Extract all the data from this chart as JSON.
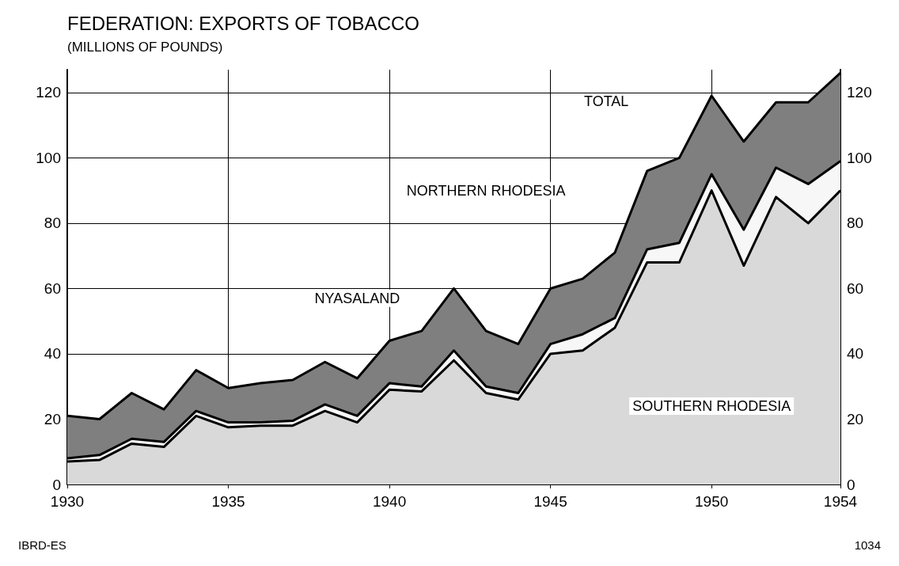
{
  "chart_data": {
    "type": "area",
    "title": "FEDERATION: EXPORTS OF TOBACCO",
    "subtitle": "(MILLIONS OF POUNDS)",
    "stacked": true,
    "grid": true,
    "x": [
      1930,
      1931,
      1932,
      1933,
      1934,
      1935,
      1936,
      1937,
      1938,
      1939,
      1940,
      1941,
      1942,
      1943,
      1944,
      1945,
      1946,
      1947,
      1948,
      1949,
      1950,
      1951,
      1952,
      1953,
      1954
    ],
    "series": [
      {
        "name": "SOUTHERN RHODESIA",
        "color": "#d9d9d9",
        "values": [
          7,
          7.5,
          12.5,
          11.5,
          21,
          17.5,
          18,
          18,
          22.5,
          19,
          29,
          28.5,
          38,
          28,
          26,
          40,
          41,
          48,
          68,
          68,
          90,
          67,
          88,
          80,
          90
        ]
      },
      {
        "name": "NORTHERN RHODESIA",
        "color": "#f7f7f7",
        "values": [
          1,
          1.5,
          1.5,
          1.5,
          1.5,
          1.5,
          1,
          1.5,
          2,
          2,
          2,
          1.5,
          3,
          2,
          2,
          3,
          5,
          3,
          4,
          6,
          5,
          11,
          9,
          12,
          9
        ]
      },
      {
        "name": "NYASALAND",
        "color": "#7f7f7f",
        "values": [
          13,
          11,
          14,
          10,
          12.5,
          10.5,
          12,
          12.5,
          13,
          11.5,
          13,
          17,
          19,
          17,
          15,
          17,
          17,
          20,
          24,
          26,
          24,
          27,
          20,
          25,
          27
        ]
      }
    ],
    "xlim": [
      1930,
      1954
    ],
    "xticks": [
      1930,
      1935,
      1940,
      1945,
      1950,
      1954
    ],
    "ylim": [
      0,
      127
    ],
    "yticks": [
      0,
      20,
      40,
      60,
      80,
      100,
      120
    ],
    "y2lim": [
      0,
      127
    ],
    "y2ticks": [
      0,
      20,
      40,
      60,
      80,
      100,
      120
    ],
    "annotations": [
      "TOTAL",
      "IBRD-ES",
      "1034"
    ]
  }
}
